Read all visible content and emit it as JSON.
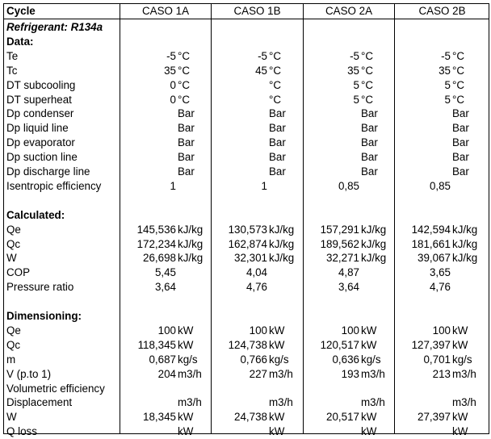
{
  "header": {
    "label": "Cycle",
    "cases": [
      "CASO 1A",
      "CASO 1B",
      "CASO 2A",
      "CASO 2B"
    ]
  },
  "rows": [
    {
      "type": "section",
      "style": "bi",
      "label": "Refrigerant: R134a"
    },
    {
      "type": "section",
      "style": "b",
      "label": "Data:"
    },
    {
      "label": "Te",
      "cells": [
        [
          "-5",
          "°C"
        ],
        [
          "-5",
          "°C"
        ],
        [
          "-5",
          "°C"
        ],
        [
          "-5",
          "°C"
        ]
      ]
    },
    {
      "label": "Tc",
      "cells": [
        [
          "35",
          "°C"
        ],
        [
          "45",
          "°C"
        ],
        [
          "35",
          "°C"
        ],
        [
          "35",
          "°C"
        ]
      ]
    },
    {
      "label": "DT subcooling",
      "cells": [
        [
          "0",
          "°C"
        ],
        [
          "",
          "°C"
        ],
        [
          "5",
          "°C"
        ],
        [
          "5",
          "°C"
        ]
      ]
    },
    {
      "label": "DT superheat",
      "cells": [
        [
          "0",
          "°C"
        ],
        [
          "",
          "°C"
        ],
        [
          "5",
          "°C"
        ],
        [
          "5",
          "°C"
        ]
      ]
    },
    {
      "label": "Dp condenser",
      "cells": [
        [
          "",
          "Bar"
        ],
        [
          "",
          "Bar"
        ],
        [
          "",
          "Bar"
        ],
        [
          "",
          "Bar"
        ]
      ]
    },
    {
      "label": "Dp liquid line",
      "cells": [
        [
          "",
          "Bar"
        ],
        [
          "",
          "Bar"
        ],
        [
          "",
          "Bar"
        ],
        [
          "",
          "Bar"
        ]
      ]
    },
    {
      "label": "Dp evaporator",
      "cells": [
        [
          "",
          "Bar"
        ],
        [
          "",
          "Bar"
        ],
        [
          "",
          "Bar"
        ],
        [
          "",
          "Bar"
        ]
      ]
    },
    {
      "label": "Dp suction line",
      "cells": [
        [
          "",
          "Bar"
        ],
        [
          "",
          "Bar"
        ],
        [
          "",
          "Bar"
        ],
        [
          "",
          "Bar"
        ]
      ]
    },
    {
      "label": "Dp discharge line",
      "cells": [
        [
          "",
          "Bar"
        ],
        [
          "",
          "Bar"
        ],
        [
          "",
          "Bar"
        ],
        [
          "",
          "Bar"
        ]
      ]
    },
    {
      "label": "Isentropic efficiency",
      "cells": [
        [
          "1",
          ""
        ],
        [
          "1",
          ""
        ],
        [
          "0,85",
          ""
        ],
        [
          "0,85",
          ""
        ]
      ]
    },
    {
      "type": "blank"
    },
    {
      "type": "section",
      "style": "b",
      "label": "Calculated:"
    },
    {
      "label": "Qe",
      "cells": [
        [
          "145,536",
          "kJ/kg"
        ],
        [
          "130,573",
          "kJ/kg"
        ],
        [
          "157,291",
          "kJ/kg"
        ],
        [
          "142,594",
          "kJ/kg"
        ]
      ]
    },
    {
      "label": "Qc",
      "cells": [
        [
          "172,234",
          "kJ/kg"
        ],
        [
          "162,874",
          "kJ/kg"
        ],
        [
          "189,562",
          "kJ/kg"
        ],
        [
          "181,661",
          "kJ/kg"
        ]
      ]
    },
    {
      "label": "W",
      "cells": [
        [
          "26,698",
          "kJ/kg"
        ],
        [
          "32,301",
          "kJ/kg"
        ],
        [
          "32,271",
          "kJ/kg"
        ],
        [
          "39,067",
          "kJ/kg"
        ]
      ]
    },
    {
      "label": "COP",
      "cells": [
        [
          "5,45",
          ""
        ],
        [
          "4,04",
          ""
        ],
        [
          "4,87",
          ""
        ],
        [
          "3,65",
          ""
        ]
      ]
    },
    {
      "label": "Pressure ratio",
      "cells": [
        [
          "3,64",
          ""
        ],
        [
          "4,76",
          ""
        ],
        [
          "3,64",
          ""
        ],
        [
          "4,76",
          ""
        ]
      ]
    },
    {
      "type": "blank"
    },
    {
      "type": "section",
      "style": "b",
      "label": "Dimensioning:"
    },
    {
      "label": "Qe",
      "cells": [
        [
          "100",
          "kW"
        ],
        [
          "100",
          "kW"
        ],
        [
          "100",
          "kW"
        ],
        [
          "100",
          "kW"
        ]
      ]
    },
    {
      "label": "Qc",
      "cells": [
        [
          "118,345",
          "kW"
        ],
        [
          "124,738",
          "kW"
        ],
        [
          "120,517",
          "kW"
        ],
        [
          "127,397",
          "kW"
        ]
      ]
    },
    {
      "label": "m",
      "cells": [
        [
          "0,687",
          "kg/s"
        ],
        [
          "0,766",
          "kg/s"
        ],
        [
          "0,636",
          "kg/s"
        ],
        [
          "0,701",
          "kg/s"
        ]
      ]
    },
    {
      "label": "V  (p.to 1)",
      "cells": [
        [
          "204",
          "m3/h"
        ],
        [
          "227",
          "m3/h"
        ],
        [
          "193",
          "m3/h"
        ],
        [
          "213",
          "m3/h"
        ]
      ]
    },
    {
      "label": "Volumetric efficiency",
      "cells": [
        [
          "",
          ""
        ],
        [
          "",
          ""
        ],
        [
          "",
          ""
        ],
        [
          "",
          ""
        ]
      ]
    },
    {
      "label": "Displacement",
      "cells": [
        [
          "",
          "m3/h"
        ],
        [
          "",
          "m3/h"
        ],
        [
          "",
          "m3/h"
        ],
        [
          "",
          "m3/h"
        ]
      ]
    },
    {
      "label": "W",
      "cells": [
        [
          "18,345",
          "kW"
        ],
        [
          "24,738",
          "kW"
        ],
        [
          "20,517",
          "kW"
        ],
        [
          "27,397",
          "kW"
        ]
      ]
    },
    {
      "label": "Q loss",
      "cells": [
        [
          "",
          "kW"
        ],
        [
          "",
          "kW"
        ],
        [
          "",
          "kW"
        ],
        [
          "",
          "kW"
        ]
      ]
    }
  ]
}
